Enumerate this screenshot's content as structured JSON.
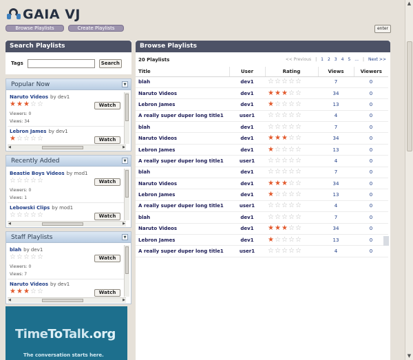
{
  "header": {
    "logo_text": "GAIA VJ",
    "browse_label": "Browse Playlists",
    "create_label": "Create Playlists",
    "enter_label": "enter"
  },
  "search": {
    "title": "Search Playlists",
    "tags_label": "Tags",
    "input_value": "",
    "button_label": "Search"
  },
  "popular": {
    "title": "Popular Now",
    "items": [
      {
        "name": "Naruto Videos",
        "by": "by dev1",
        "rating": 3,
        "watch": "Watch",
        "viewers": "Viewers: 0",
        "views": "Views: 34"
      },
      {
        "name": "Lebron James",
        "by": "by dev1",
        "rating": 1,
        "watch": "Watch",
        "viewers": "",
        "views": ""
      }
    ]
  },
  "recent": {
    "title": "Recently Added",
    "items": [
      {
        "name": "Beastie Boys Videos",
        "by": "by mod1",
        "rating": 0,
        "watch": "Watch",
        "viewers": "Viewers: 0",
        "views": "Views: 1"
      },
      {
        "name": "Lebowski Clips",
        "by": "by mod1",
        "rating": 0,
        "watch": "Watch",
        "viewers": "",
        "views": ""
      }
    ]
  },
  "staff": {
    "title": "Staff Playlists",
    "items": [
      {
        "name": "blah",
        "by": "by dev1",
        "rating": 0,
        "watch": "Watch",
        "viewers": "Viewers: 0",
        "views": "Views: 7"
      },
      {
        "name": "Naruto Videos",
        "by": "by dev1",
        "rating": 3,
        "watch": "Watch",
        "viewers": "",
        "views": ""
      }
    ]
  },
  "ad": {
    "line1a": "Time",
    "line1b": "To",
    "line1c": "Talk",
    "line1d": ".org",
    "line2": "The conversation starts here."
  },
  "browse": {
    "title": "Browse Playlists",
    "count": "20 Playlists",
    "prev": "<< Previous",
    "pages": [
      "1",
      "2",
      "3",
      "4",
      "5",
      "..."
    ],
    "next": "Next >>",
    "columns": {
      "title": "Title",
      "user": "User",
      "rating": "Rating",
      "views": "Views",
      "viewers": "Viewers"
    },
    "rows": [
      {
        "title": "blah",
        "user": "dev1",
        "rating": 0,
        "views": "7",
        "viewers": "0"
      },
      {
        "title": "Naruto Videos",
        "user": "dev1",
        "rating": 3,
        "views": "34",
        "viewers": "0"
      },
      {
        "title": "Lebron James",
        "user": "dev1",
        "rating": 1,
        "views": "13",
        "viewers": "0"
      },
      {
        "title": "A really super duper long title1",
        "user": "user1",
        "rating": 0,
        "views": "4",
        "viewers": "0"
      },
      {
        "title": "blah",
        "user": "dev1",
        "rating": 0,
        "views": "7",
        "viewers": "0"
      },
      {
        "title": "Naruto Videos",
        "user": "dev1",
        "rating": 3,
        "views": "34",
        "viewers": "0"
      },
      {
        "title": "Lebron James",
        "user": "dev1",
        "rating": 1,
        "views": "13",
        "viewers": "0"
      },
      {
        "title": "A really super duper long title1",
        "user": "user1",
        "rating": 0,
        "views": "4",
        "viewers": "0"
      },
      {
        "title": "blah",
        "user": "dev1",
        "rating": 0,
        "views": "7",
        "viewers": "0"
      },
      {
        "title": "Naruto Videos",
        "user": "dev1",
        "rating": 3,
        "views": "34",
        "viewers": "0"
      },
      {
        "title": "Lebron James",
        "user": "dev1",
        "rating": 1,
        "views": "13",
        "viewers": "0"
      },
      {
        "title": "A really super duper long title1",
        "user": "user1",
        "rating": 0,
        "views": "4",
        "viewers": "0"
      },
      {
        "title": "blah",
        "user": "dev1",
        "rating": 0,
        "views": "7",
        "viewers": "0"
      },
      {
        "title": "Naruto Videos",
        "user": "dev1",
        "rating": 3,
        "views": "34",
        "viewers": "0"
      },
      {
        "title": "Lebron James",
        "user": "dev1",
        "rating": 1,
        "views": "13",
        "viewers": "0"
      },
      {
        "title": "A really super duper long title1",
        "user": "user1",
        "rating": 0,
        "views": "4",
        "viewers": "0"
      }
    ]
  },
  "colors": {
    "accent": "#e2592c",
    "header_bg": "#4d5266",
    "nav_button": "#9c93ad",
    "link": "#1e3d87"
  }
}
